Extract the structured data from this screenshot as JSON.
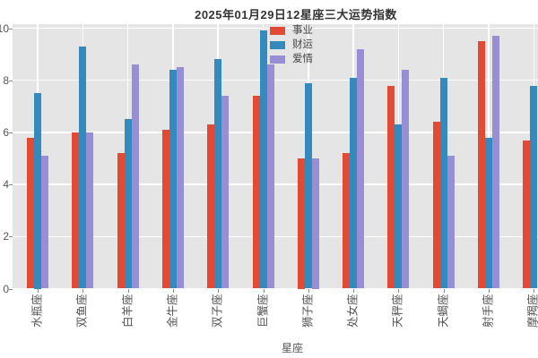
{
  "title": "2025年01月29日12星座三大运势指数",
  "chart_data": {
    "type": "bar",
    "title": "2025年01月29日12星座三大运势指数",
    "xlabel": "星座",
    "ylabel": "",
    "ylim": [
      0,
      10
    ],
    "yticks": [
      0,
      2,
      4,
      6,
      8,
      10
    ],
    "ytick_labels": [
      "0",
      "2",
      "4",
      "6",
      "8",
      "10"
    ],
    "grid": true,
    "legend_position": "upper center",
    "categories": [
      "水瓶座",
      "双鱼座",
      "白羊座",
      "金牛座",
      "双子座",
      "巨蟹座",
      "狮子座",
      "处女座",
      "天秤座",
      "天蝎座",
      "射手座",
      "摩羯座"
    ],
    "series": [
      {
        "name": "事业",
        "color": "#E24A33",
        "values": [
          5.8,
          6.0,
          5.2,
          6.1,
          6.3,
          7.4,
          5.0,
          5.2,
          7.8,
          6.4,
          9.5,
          5.7
        ]
      },
      {
        "name": "财运",
        "color": "#348ABD",
        "values": [
          7.5,
          9.3,
          6.5,
          8.4,
          8.8,
          9.9,
          7.9,
          8.1,
          6.3,
          8.1,
          5.8,
          7.8
        ]
      },
      {
        "name": "爱情",
        "color": "#988ED5",
        "values": [
          5.1,
          6.0,
          8.6,
          8.5,
          7.4,
          8.6,
          5.0,
          9.2,
          8.4,
          5.1,
          9.7,
          null
        ]
      }
    ]
  },
  "colors": {
    "plot_bg": "#E5E5E5",
    "grid": "#FFFFFF",
    "tick_text": "#555555",
    "title_text": "#333333",
    "figure_bg": "#FFFFFF"
  }
}
